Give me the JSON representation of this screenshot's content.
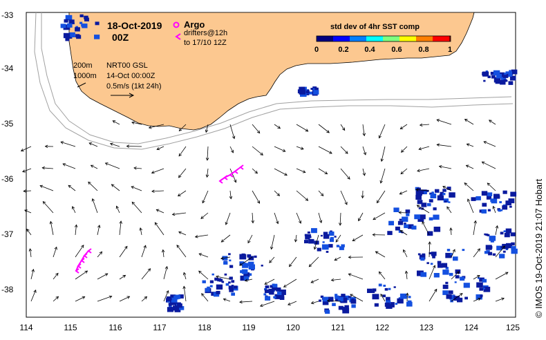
{
  "header": {
    "date": "18-Oct-2019",
    "time": "00Z"
  },
  "legend": {
    "argo": "Argo",
    "drifters_line1": "drifters@12h",
    "drifters_line2": "to 17/10 12Z",
    "argo_color": "#ff00ff",
    "drifter_color": "#ff00ff"
  },
  "info": {
    "contour_200": "200m",
    "contour_1000": "1000m",
    "product": "NRT00 GSL",
    "product_time": "14-Oct 00:00Z",
    "scale_label": "0.5m/s (1kt 24h)"
  },
  "colorbar": {
    "title": "std dev of 4hr SST comp",
    "ticks": [
      "0",
      "0.2",
      "0.4",
      "0.6",
      "0.8",
      "1"
    ],
    "colors": [
      "#00007f",
      "#0000ff",
      "#007fff",
      "#00ffff",
      "#7fff7f",
      "#ffff00",
      "#ff7f00",
      "#ff0000",
      "#7f0000"
    ]
  },
  "axes": {
    "x_ticks": [
      "114",
      "115",
      "116",
      "117",
      "118",
      "119",
      "120",
      "121",
      "122",
      "123",
      "124",
      "125"
    ],
    "y_ticks": [
      "-33",
      "-34",
      "-35",
      "-36",
      "-37",
      "-38"
    ],
    "xlim": [
      114,
      125
    ],
    "ylim": [
      -38.5,
      -33
    ]
  },
  "colors": {
    "land": "#fcc890",
    "sst_low": "#0a1a9e",
    "sst_mid": "#1450e0",
    "contour": "#a0a0a0"
  },
  "credit": "© IMOS 19-Oct-2019 21:07 Hobart"
}
